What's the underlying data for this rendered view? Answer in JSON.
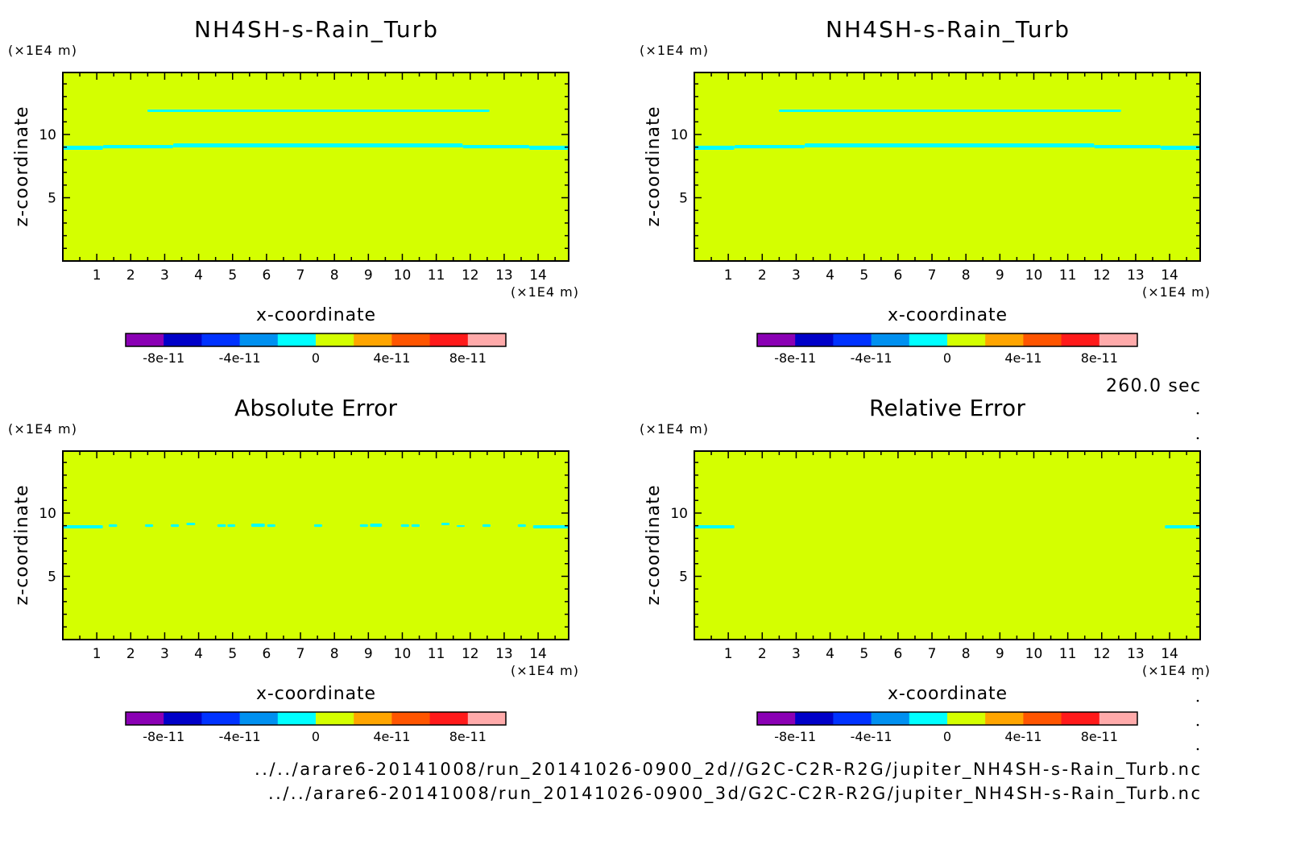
{
  "time_label": "260.0 sec",
  "files": [
    "../../arare6-20141008/run_20141026-0900_2d//G2C-C2R-R2G/jupiter_NH4SH-s-Rain_Turb.nc",
    "../../arare6-20141008/run_20141026-0900_3d/G2C-C2R-R2G/jupiter_NH4SH-s-Rain_Turb.nc"
  ],
  "colorbar": {
    "levels": [
      -1e-10,
      -8e-11,
      -6e-11,
      -4e-11,
      -2e-11,
      0,
      2e-11,
      4e-11,
      6e-11,
      8e-11,
      1e-10
    ],
    "colors": [
      "#8a00b4",
      "#0000c8",
      "#0032ff",
      "#0090f0",
      "#00ffff",
      "#d4ff00",
      "#ffa500",
      "#ff5500",
      "#ff1a1a",
      "#ffaaaa"
    ],
    "ticks": [
      {
        "value": -8e-11,
        "label": "-8e-11"
      },
      {
        "value": -4e-11,
        "label": "-4e-11"
      },
      {
        "value": 0,
        "label": "0"
      },
      {
        "value": 4e-11,
        "label": "4e-11"
      },
      {
        "value": 8e-11,
        "label": "8e-11"
      }
    ]
  },
  "chart_data": [
    {
      "type": "heatmap",
      "title": "NH4SH-s-Rain_Turb",
      "xlabel": "x-coordinate",
      "ylabel": "z-coordinate",
      "x_unit": "(×1E4 m)",
      "y_unit": "(×1E4 m)",
      "xlim": [
        0,
        14.9
      ],
      "ylim": [
        0,
        14.9
      ],
      "xticks": [
        1,
        2,
        3,
        4,
        5,
        6,
        7,
        8,
        9,
        10,
        11,
        12,
        13,
        14
      ],
      "yticks": [
        5,
        10
      ],
      "background_value_range": [
        0,
        2e-11
      ],
      "regions": [
        {
          "value_range": [
            -2e-11,
            0
          ],
          "x": [
            2.49,
            12.57
          ],
          "z": [
            11.78,
            11.97
          ]
        },
        {
          "value_range": [
            -2e-11,
            0
          ],
          "x": [
            0,
            1.18
          ],
          "z": [
            8.79,
            9.11
          ]
        },
        {
          "value_range": [
            -2e-11,
            0
          ],
          "x": [
            1.18,
            3.25
          ],
          "z": [
            8.91,
            9.17
          ]
        },
        {
          "value_range": [
            -2e-11,
            0
          ],
          "x": [
            3.25,
            11.78
          ],
          "z": [
            8.98,
            9.3
          ]
        },
        {
          "value_range": [
            -2e-11,
            0
          ],
          "x": [
            11.78,
            13.74
          ],
          "z": [
            8.91,
            9.17
          ]
        },
        {
          "value_range": [
            -2e-11,
            0
          ],
          "x": [
            13.74,
            14.9
          ],
          "z": [
            8.79,
            9.11
          ]
        }
      ]
    },
    {
      "type": "heatmap",
      "title": "NH4SH-s-Rain_Turb",
      "xlabel": "x-coordinate",
      "ylabel": "z-coordinate",
      "x_unit": "(×1E4 m)",
      "y_unit": "(×1E4 m)",
      "xlim": [
        0,
        14.9
      ],
      "ylim": [
        0,
        14.9
      ],
      "xticks": [
        1,
        2,
        3,
        4,
        5,
        6,
        7,
        8,
        9,
        10,
        11,
        12,
        13,
        14
      ],
      "yticks": [
        5,
        10
      ],
      "background_value_range": [
        0,
        2e-11
      ],
      "regions": [
        {
          "value_range": [
            -2e-11,
            0
          ],
          "x": [
            2.49,
            12.57
          ],
          "z": [
            11.78,
            11.97
          ]
        },
        {
          "value_range": [
            -2e-11,
            0
          ],
          "x": [
            0,
            1.18
          ],
          "z": [
            8.79,
            9.11
          ]
        },
        {
          "value_range": [
            -2e-11,
            0
          ],
          "x": [
            1.18,
            3.25
          ],
          "z": [
            8.91,
            9.17
          ]
        },
        {
          "value_range": [
            -2e-11,
            0
          ],
          "x": [
            3.25,
            11.78
          ],
          "z": [
            8.98,
            9.3
          ]
        },
        {
          "value_range": [
            -2e-11,
            0
          ],
          "x": [
            11.78,
            13.74
          ],
          "z": [
            8.91,
            9.17
          ]
        },
        {
          "value_range": [
            -2e-11,
            0
          ],
          "x": [
            13.74,
            14.9
          ],
          "z": [
            8.79,
            9.11
          ]
        }
      ]
    },
    {
      "type": "heatmap",
      "title": "Absolute Error",
      "xlabel": "x-coordinate",
      "ylabel": "z-coordinate",
      "x_unit": "(×1E4 m)",
      "y_unit": "(×1E4 m)",
      "xlim": [
        0,
        14.9
      ],
      "ylim": [
        0,
        14.9
      ],
      "xticks": [
        1,
        2,
        3,
        4,
        5,
        6,
        7,
        8,
        9,
        10,
        11,
        12,
        13,
        14
      ],
      "yticks": [
        5,
        10
      ],
      "background_value_range": [
        0,
        2e-11
      ],
      "regions": [
        {
          "value_range": [
            -2e-11,
            0
          ],
          "x": [
            0,
            1.18
          ],
          "z": [
            8.79,
            9.04
          ]
        },
        {
          "value_range": [
            -2e-11,
            0
          ],
          "x": [
            1.35,
            1.6
          ],
          "z": [
            8.91,
            9.11
          ]
        },
        {
          "value_range": [
            -2e-11,
            0
          ],
          "x": [
            2.42,
            2.66
          ],
          "z": [
            8.91,
            9.11
          ]
        },
        {
          "value_range": [
            -2e-11,
            0
          ],
          "x": [
            3.18,
            3.42
          ],
          "z": [
            8.91,
            9.11
          ]
        },
        {
          "value_range": [
            -2e-11,
            0
          ],
          "x": [
            3.64,
            3.9
          ],
          "z": [
            9.04,
            9.23
          ]
        },
        {
          "value_range": [
            -2e-11,
            0
          ],
          "x": [
            4.55,
            4.8
          ],
          "z": [
            8.91,
            9.11
          ]
        },
        {
          "value_range": [
            -2e-11,
            0
          ],
          "x": [
            4.85,
            5.08
          ],
          "z": [
            8.91,
            9.11
          ]
        },
        {
          "value_range": [
            -2e-11,
            0
          ],
          "x": [
            5.55,
            5.95
          ],
          "z": [
            8.91,
            9.17
          ]
        },
        {
          "value_range": [
            -2e-11,
            0
          ],
          "x": [
            6.02,
            6.26
          ],
          "z": [
            8.91,
            9.11
          ]
        },
        {
          "value_range": [
            -2e-11,
            0
          ],
          "x": [
            7.4,
            7.64
          ],
          "z": [
            8.91,
            9.11
          ]
        },
        {
          "value_range": [
            -2e-11,
            0
          ],
          "x": [
            8.75,
            8.99
          ],
          "z": [
            8.91,
            9.11
          ]
        },
        {
          "value_range": [
            -2e-11,
            0
          ],
          "x": [
            9.05,
            9.4
          ],
          "z": [
            8.91,
            9.17
          ]
        },
        {
          "value_range": [
            -2e-11,
            0
          ],
          "x": [
            9.96,
            10.2
          ],
          "z": [
            8.91,
            9.11
          ]
        },
        {
          "value_range": [
            -2e-11,
            0
          ],
          "x": [
            10.27,
            10.51
          ],
          "z": [
            8.91,
            9.11
          ]
        },
        {
          "value_range": [
            -2e-11,
            0
          ],
          "x": [
            11.15,
            11.39
          ],
          "z": [
            9.04,
            9.23
          ]
        },
        {
          "value_range": [
            -2e-11,
            0
          ],
          "x": [
            11.6,
            11.84
          ],
          "z": [
            8.91,
            9.04
          ]
        },
        {
          "value_range": [
            -2e-11,
            0
          ],
          "x": [
            12.36,
            12.6
          ],
          "z": [
            8.91,
            9.11
          ]
        },
        {
          "value_range": [
            -2e-11,
            0
          ],
          "x": [
            13.4,
            13.64
          ],
          "z": [
            8.91,
            9.11
          ]
        },
        {
          "value_range": [
            -2e-11,
            0
          ],
          "x": [
            13.85,
            14.9
          ],
          "z": [
            8.79,
            9.04
          ]
        }
      ]
    },
    {
      "type": "heatmap",
      "title": "Relative Error",
      "xlabel": "x-coordinate",
      "ylabel": "z-coordinate",
      "x_unit": "(×1E4 m)",
      "y_unit": "(×1E4 m)",
      "xlim": [
        0,
        14.9
      ],
      "ylim": [
        0,
        14.9
      ],
      "xticks": [
        1,
        2,
        3,
        4,
        5,
        6,
        7,
        8,
        9,
        10,
        11,
        12,
        13,
        14
      ],
      "yticks": [
        5,
        10
      ],
      "background_value_range": [
        0,
        2e-11
      ],
      "regions": [
        {
          "value_range": [
            -2e-11,
            0
          ],
          "x": [
            0,
            1.18
          ],
          "z": [
            8.79,
            9.04
          ]
        },
        {
          "value_range": [
            -2e-11,
            0
          ],
          "x": [
            13.86,
            14.9
          ],
          "z": [
            8.79,
            9.04
          ]
        }
      ]
    }
  ]
}
